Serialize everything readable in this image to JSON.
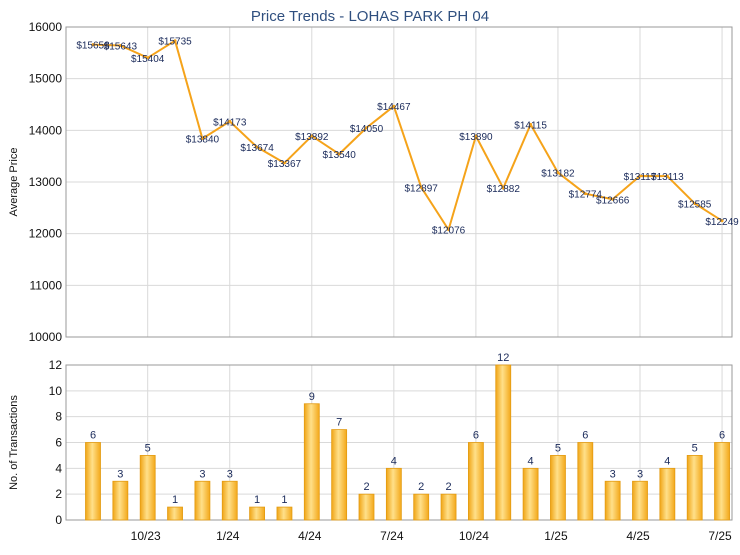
{
  "chart_data": [
    {
      "type": "line",
      "title": "Price Trends - LOHAS PARK PH 04",
      "ylabel": "Average Price",
      "ylim": [
        10000,
        16000
      ],
      "yticks": [
        10000,
        11000,
        12000,
        13000,
        14000,
        15000,
        16000
      ],
      "series": [
        {
          "color": "#f5a31a",
          "values": [
            15658,
            15643,
            15404,
            15735,
            13840,
            14173,
            13674,
            13367,
            13892,
            13540,
            14050,
            14467,
            12897,
            12076,
            13890,
            12882,
            14115,
            13182,
            12774,
            12666,
            13117,
            13113,
            12585,
            12249
          ]
        }
      ],
      "value_labels": [
        "$15658",
        "$15643",
        "$15404",
        "$15735",
        "$13840",
        "$14173",
        "$13674",
        "$13367",
        "$13892",
        "$13540",
        "$14050",
        "$14467",
        "$12897",
        "$12076",
        "$13890",
        "$12882",
        "$14115",
        "$13182",
        "$12774",
        "$12666",
        "$13117",
        "$13113",
        "$12585",
        "$12249"
      ],
      "grid": true
    },
    {
      "type": "bar",
      "ylabel": "No. of Transactions",
      "ylim": [
        0,
        12
      ],
      "yticks": [
        0,
        2,
        4,
        6,
        8,
        10,
        12
      ],
      "x_tick_labels": [
        {
          "label": "10/23",
          "index": 2
        },
        {
          "label": "1/24",
          "index": 5
        },
        {
          "label": "4/24",
          "index": 8
        },
        {
          "label": "7/24",
          "index": 11
        },
        {
          "label": "10/24",
          "index": 14
        },
        {
          "label": "1/25",
          "index": 17
        },
        {
          "label": "4/25",
          "index": 20
        },
        {
          "label": "7/25",
          "index": 23
        }
      ],
      "values": [
        6,
        3,
        5,
        1,
        3,
        3,
        1,
        1,
        9,
        7,
        2,
        4,
        2,
        2,
        6,
        12,
        4,
        5,
        6,
        3,
        3,
        4,
        5,
        6
      ],
      "colors": {
        "bar_edge": "#e39b12",
        "bar_light": "#ffd874",
        "bar_mid": "#f7b11d"
      },
      "grid": true
    }
  ]
}
